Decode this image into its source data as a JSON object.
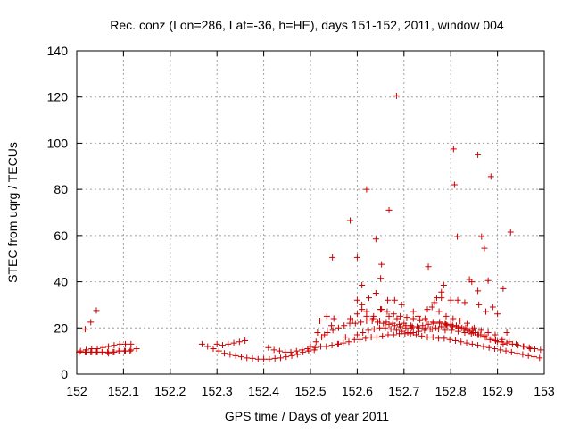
{
  "chart_data": {
    "type": "scatter",
    "title": "Rec. conz (Lon=286, Lat=-36, h=HE), days 151-152, 2011, window 004",
    "xlabel": "GPS time / Days of year 2011",
    "ylabel": "STEC from uqrg / TECUs",
    "xlim": [
      152,
      153
    ],
    "ylim": [
      0,
      140
    ],
    "xticks": [
      152,
      152.1,
      152.2,
      152.3,
      152.4,
      152.5,
      152.6,
      152.7,
      152.8,
      152.9,
      153
    ],
    "xtick_labels": [
      "152",
      "152.1",
      "152.2",
      "152.3",
      "152.4",
      "152.5",
      "152.6",
      "152.7",
      "152.8",
      "152.9",
      "153"
    ],
    "yticks": [
      0,
      20,
      40,
      60,
      80,
      100,
      120,
      140
    ],
    "ytick_labels": [
      "0",
      "20",
      "40",
      "60",
      "80",
      "100",
      "120",
      "140"
    ],
    "grid": true,
    "legend": "none",
    "marker": "+",
    "colors": {
      "points": "#cc0000",
      "grid": "#a0a0a0",
      "axes": "#000000"
    },
    "series": [
      {
        "x": [
          152.005,
          152.018,
          152.03,
          152.042,
          152.008,
          152.02,
          152.032,
          152.044,
          152.056,
          152.068,
          152.08,
          152.092,
          152.104,
          152.116,
          152.128,
          152.02,
          152.032,
          152.044,
          152.056,
          152.068,
          152.08,
          152.092,
          152.104,
          152.116,
          152.005,
          152.018,
          152.03,
          152.042,
          152.054,
          152.066,
          152.078,
          152.09,
          152.102,
          152.114,
          152.268,
          152.28,
          152.292,
          152.304,
          152.316,
          152.328,
          152.34,
          152.352,
          152.364,
          152.376,
          152.388,
          152.4,
          152.412,
          152.424,
          152.436,
          152.448,
          152.46,
          152.472,
          152.484,
          152.496,
          152.508,
          152.3,
          152.312,
          152.324,
          152.336,
          152.348,
          152.36,
          152.41,
          152.422,
          152.434,
          152.446,
          152.458,
          152.47,
          152.482,
          152.494,
          152.51,
          152.522,
          152.534,
          152.546,
          152.558,
          152.57,
          152.582,
          152.594,
          152.606,
          152.618,
          152.63,
          152.642,
          152.654,
          152.666,
          152.678,
          152.69,
          152.702,
          152.714,
          152.726,
          152.738,
          152.75,
          152.762,
          152.774,
          152.786,
          152.798,
          152.81,
          152.822,
          152.834,
          152.846,
          152.858,
          152.87,
          152.882,
          152.894,
          152.906,
          152.918,
          152.93,
          152.942,
          152.954,
          152.966,
          152.978,
          152.99,
          152.5,
          152.512,
          152.524,
          152.536,
          152.548,
          152.56,
          152.572,
          152.584,
          152.596,
          152.608,
          152.62,
          152.632,
          152.644,
          152.656,
          152.668,
          152.68,
          152.692,
          152.704,
          152.716,
          152.728,
          152.74,
          152.752,
          152.764,
          152.776,
          152.788,
          152.8,
          152.812,
          152.824,
          152.836,
          152.848,
          152.86,
          152.872,
          152.884,
          152.896,
          152.908,
          152.92,
          152.932,
          152.944,
          152.956,
          152.968,
          152.98,
          152.992,
          152.6,
          152.612,
          152.624,
          152.636,
          152.648,
          152.66,
          152.672,
          152.684,
          152.696,
          152.708,
          152.72,
          152.732,
          152.744,
          152.756,
          152.768,
          152.78,
          152.792,
          152.804,
          152.816,
          152.828,
          152.84,
          152.852,
          152.864,
          152.876,
          152.888,
          152.9,
          152.912,
          152.62,
          152.634,
          152.648,
          152.662,
          152.676,
          152.69,
          152.704,
          152.718,
          152.732,
          152.746,
          152.76,
          152.774,
          152.788,
          152.802,
          152.816,
          152.83,
          152.844,
          152.858,
          152.872,
          152.65,
          152.664,
          152.678,
          152.692,
          152.706,
          152.72,
          152.734,
          152.748,
          152.762,
          152.776,
          152.79,
          152.804,
          152.818,
          152.832,
          152.846,
          152.515,
          152.53,
          152.545,
          152.56,
          152.575,
          152.59,
          152.6,
          152.61,
          152.625,
          152.64,
          152.652,
          152.668,
          152.685,
          152.7,
          152.715,
          152.73,
          152.745,
          152.76,
          152.775,
          152.79,
          152.805,
          152.82,
          152.835,
          152.85,
          152.865,
          152.88,
          152.895,
          152.91,
          152.925,
          152.94,
          152.955,
          152.97,
          152.52,
          152.535,
          152.55,
          152.585,
          152.6,
          152.61,
          152.62,
          152.635,
          152.65,
          152.665,
          152.68,
          152.695,
          152.72,
          152.75,
          152.765,
          152.78,
          152.8,
          152.815,
          152.83,
          152.845,
          152.86,
          152.875,
          152.89,
          152.92,
          152.684,
          152.806,
          152.858,
          152.886,
          152.62,
          152.808,
          152.668,
          152.585,
          152.814,
          152.928,
          152.64,
          152.866,
          152.547,
          152.6,
          152.872,
          152.652,
          152.752,
          152.61,
          152.65,
          152.78,
          152.858,
          152.912,
          152.77,
          152.785,
          152.84,
          152.88,
          152.9
        ],
        "y": [
          9.5,
          19.5,
          22.5,
          27.5,
          10,
          10.5,
          11,
          11,
          11.5,
          12,
          12.5,
          13,
          13,
          13,
          11,
          9.5,
          9.5,
          9.5,
          9.5,
          9,
          9.5,
          10,
          10,
          10.5,
          9.5,
          9.5,
          9.5,
          9.5,
          9.5,
          9.5,
          9.5,
          10,
          10,
          10,
          13,
          12,
          11,
          10,
          9,
          8.5,
          8,
          7.5,
          7,
          6.8,
          6.5,
          6.5,
          6.5,
          6.8,
          7,
          7.5,
          8,
          8.5,
          9.5,
          10,
          10.5,
          13,
          12.5,
          13,
          13.5,
          14,
          14.5,
          11.5,
          10.5,
          10,
          9.5,
          9.5,
          10,
          10.5,
          11,
          11.5,
          12,
          12,
          12.5,
          13,
          13.5,
          14,
          15,
          15,
          15.5,
          16,
          16,
          16.5,
          17,
          17,
          17.5,
          17.5,
          17.5,
          17,
          16.5,
          16,
          16,
          15.5,
          15.5,
          15,
          14.5,
          14,
          13.5,
          13,
          12.5,
          12,
          11.5,
          11,
          10.5,
          10,
          9.5,
          9,
          8.5,
          8,
          7.5,
          7,
          12,
          14,
          16,
          18,
          19,
          20,
          21,
          22,
          22,
          22.5,
          23,
          23,
          22.5,
          22,
          21.5,
          21,
          20.5,
          20,
          20,
          20.5,
          21,
          21.5,
          22,
          22.5,
          22,
          21.5,
          21,
          20,
          19,
          18,
          17,
          16,
          15,
          14.5,
          14,
          13.5,
          13,
          12.5,
          12,
          11.5,
          11,
          10.5,
          17,
          18,
          19,
          19.5,
          20,
          20,
          19.5,
          19,
          18.5,
          18,
          18,
          18.5,
          19,
          19.5,
          20,
          20.5,
          21,
          20.5,
          20,
          19.5,
          18.5,
          18,
          17,
          16,
          15,
          14,
          13,
          25,
          24,
          23,
          22.5,
          22,
          21.5,
          21,
          20.5,
          20,
          20,
          19.5,
          19.5,
          19,
          19,
          18.5,
          18,
          17.5,
          17,
          16.5,
          28,
          27,
          26,
          25,
          24.5,
          24,
          23.5,
          23,
          22.5,
          22,
          21.5,
          21,
          20.5,
          20,
          19.5,
          18,
          17,
          21,
          13,
          16,
          23,
          26,
          30,
          33,
          35,
          28,
          25,
          24,
          22,
          21,
          25,
          24,
          29,
          27,
          25,
          24,
          23,
          22,
          20,
          19,
          18,
          17,
          15,
          14,
          13,
          12,
          11,
          23,
          25,
          24,
          24,
          32,
          28,
          27,
          25,
          28,
          32,
          32,
          30,
          27,
          28,
          31,
          33,
          32,
          32,
          31,
          40,
          30,
          27,
          29,
          18,
          120.5,
          97.5,
          95,
          85.5,
          80,
          82,
          71,
          66.5,
          59.5,
          61.5,
          58.5,
          59.5,
          50.5,
          50.5,
          54.5,
          47.5,
          46.5,
          38.5,
          41.5,
          35.5,
          36,
          37,
          33,
          38.5,
          41,
          40.5,
          26
        ]
      }
    ]
  }
}
